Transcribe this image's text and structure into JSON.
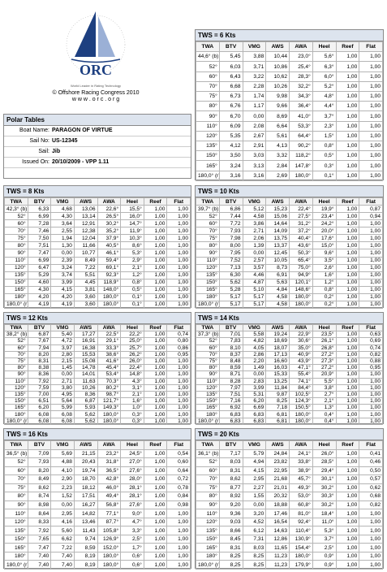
{
  "header": {
    "logo": "ORC",
    "tagline": "World Leader in Rating Technology",
    "copyright": "© Offshore Racing Congress 2010",
    "website": "w w w . o r c . o r g"
  },
  "boat": {
    "title": "Polar Tables",
    "fields": [
      {
        "label": "Boat Name:",
        "value": "PARAGON OF VIRTUE"
      },
      {
        "label": "Sail No:",
        "value": "US-12345"
      },
      {
        "label": "Sail:",
        "value": "Jib"
      },
      {
        "label": "Issued On:",
        "value": "20/10/2009 - VPP 1.11"
      }
    ]
  },
  "columns": [
    "TWA",
    "BTV",
    "VMG",
    "AWS",
    "AWA",
    "Heel",
    "Reef",
    "Flat"
  ],
  "tables": [
    {
      "title": "TWS = 6 Kts",
      "rows": [
        [
          "44,6° (b)",
          "5,45",
          "3,88",
          "10,44",
          "23,0°",
          "5,6°",
          "1,00",
          "1,00"
        ],
        [
          "52°",
          "6,03",
          "3,71",
          "10,86",
          "25,4°",
          "6,3°",
          "1,00",
          "1,00"
        ],
        [
          "60°",
          "6,43",
          "3,22",
          "10,62",
          "28,3°",
          "6,0°",
          "1,00",
          "1,00"
        ],
        [
          "70°",
          "6,68",
          "2,28",
          "10,26",
          "32,2°",
          "5,2°",
          "1,00",
          "1,00"
        ],
        [
          "75°",
          "6,73",
          "1,74",
          "9,98",
          "34,3°",
          "4,8°",
          "1,00",
          "1,00"
        ],
        [
          "80°",
          "6,76",
          "1,17",
          "9,66",
          "36,4°",
          "4,4°",
          "1,00",
          "1,00"
        ],
        [
          "90°",
          "6,70",
          "0,00",
          "8,69",
          "41,0°",
          "3,7°",
          "1,00",
          "1,00"
        ],
        [
          "110°",
          "6,09",
          "2,08",
          "6,64",
          "53,3°",
          "2,3°",
          "1,00",
          "1,00"
        ],
        [
          "120°",
          "5,35",
          "2,67",
          "5,61",
          "64,4°",
          "1,5°",
          "1,00",
          "1,00"
        ],
        [
          "135°",
          "4,12",
          "2,91",
          "4,13",
          "90,2°",
          "0,8°",
          "1,00",
          "1,00"
        ],
        [
          "150°",
          "3,50",
          "3,03",
          "3,32",
          "118,2°",
          "0,5°",
          "1,00",
          "1,00"
        ],
        [
          "165°",
          "3,24",
          "3,13",
          "2,84",
          "147,8°",
          "0,3°",
          "1,00",
          "1,00"
        ],
        [
          "180,0° (r)",
          "3,16",
          "3,16",
          "2,69",
          "180,0°",
          "0,1°",
          "1,00",
          "1,00"
        ]
      ]
    },
    {
      "title": "TWS = 8 Kts",
      "rows": [
        [
          "42,3° (b)",
          "6,33",
          "4,68",
          "13,06",
          "22,6°",
          "15,5°",
          "1,00",
          "1,00"
        ],
        [
          "52°",
          "6,99",
          "4,30",
          "13,14",
          "26,5°",
          "16,0°",
          "1,00",
          "1,00"
        ],
        [
          "60°",
          "7,28",
          "3,64",
          "12,91",
          "30,2°",
          "14,7°",
          "1,00",
          "1,00"
        ],
        [
          "70°",
          "7,46",
          "2,55",
          "12,38",
          "35,2°",
          "11,9°",
          "1,00",
          "1,00"
        ],
        [
          "75°",
          "7,50",
          "1,94",
          "12,04",
          "37,9°",
          "10,3°",
          "1,00",
          "1,00"
        ],
        [
          "80°",
          "7,51",
          "1,30",
          "11,66",
          "40,5°",
          "8,6°",
          "1,00",
          "1,00"
        ],
        [
          "90°",
          "7,47",
          "0,00",
          "10,77",
          "46,1°",
          "5,3°",
          "1,00",
          "1,00"
        ],
        [
          "110°",
          "6,99",
          "2,39",
          "8,49",
          "59,4°",
          "2,9°",
          "1,00",
          "1,00"
        ],
        [
          "120°",
          "6,47",
          "3,24",
          "7,22",
          "69,1°",
          "2,1°",
          "1,00",
          "1,00"
        ],
        [
          "135°",
          "5,29",
          "3,74",
          "5,51",
          "92,3°",
          "1,2°",
          "1,00",
          "1,00"
        ],
        [
          "150°",
          "4,60",
          "3,99",
          "4,45",
          "118,9°",
          "0,8°",
          "1,00",
          "1,00"
        ],
        [
          "165°",
          "4,30",
          "4,15",
          "3,81",
          "148,0°",
          "0,5°",
          "1,00",
          "1,00"
        ],
        [
          "180°",
          "4,20",
          "4,20",
          "3,60",
          "180,0°",
          "0,1°",
          "1,00",
          "1,00"
        ],
        [
          "180,0° (r)",
          "4,19",
          "4,19",
          "3,60",
          "180,0°",
          "0,1°",
          "1,00",
          "1,00"
        ]
      ]
    },
    {
      "title": "TWS = 10 Kts",
      "rows": [
        [
          "39,7° (b)",
          "6,86",
          "5,12",
          "15,23",
          "22,4°",
          "19,9°",
          "1,00",
          "0,87"
        ],
        [
          "52°",
          "7,44",
          "4,58",
          "15,06",
          "27,5°",
          "23,4°",
          "1,00",
          "0,94"
        ],
        [
          "60°",
          "7,72",
          "3,86",
          "14,64",
          "31,2°",
          "24,2°",
          "1,00",
          "1,00"
        ],
        [
          "70°",
          "7,93",
          "2,71",
          "14,09",
          "37,2°",
          "20,0°",
          "1,00",
          "1,00"
        ],
        [
          "75°",
          "7,98",
          "2,06",
          "13,75",
          "40,4°",
          "17,6°",
          "1,00",
          "1,00"
        ],
        [
          "80°",
          "8,00",
          "1,39",
          "13,37",
          "43,6°",
          "15,0°",
          "1,00",
          "1,00"
        ],
        [
          "90°",
          "7,95",
          "0,00",
          "12,45",
          "50,3°",
          "9,6°",
          "1,00",
          "1,00"
        ],
        [
          "110°",
          "7,52",
          "2,57",
          "10,05",
          "65,4°",
          "3,5°",
          "1,00",
          "1,00"
        ],
        [
          "120°",
          "7,13",
          "3,57",
          "8,73",
          "75,0°",
          "2,6°",
          "1,00",
          "1,00"
        ],
        [
          "135°",
          "6,30",
          "4,46",
          "6,91",
          "94,9°",
          "1,6°",
          "1,00",
          "1,00"
        ],
        [
          "150°",
          "5,62",
          "4,87",
          "5,63",
          "120,1°",
          "1,2°",
          "1,00",
          "1,00"
        ],
        [
          "165°",
          "5,28",
          "5,10",
          "4,84",
          "148,6°",
          "0,8°",
          "1,00",
          "1,00"
        ],
        [
          "180°",
          "5,17",
          "5,17",
          "4,58",
          "180,0°",
          "0,2°",
          "1,00",
          "1,00"
        ],
        [
          "180,0° (r)",
          "5,17",
          "5,17",
          "4,58",
          "180,0°",
          "0,2°",
          "1,00",
          "1,00"
        ]
      ]
    },
    {
      "title": "TWS = 12 Kts",
      "rows": [
        [
          "38,2° (b)",
          "6,87",
          "5,40",
          "17,27",
          "22,5°",
          "22,2°",
          "1,00",
          "0,74"
        ],
        [
          "52°",
          "7,67",
          "4,72",
          "16,91",
          "29,1°",
          "25,0°",
          "1,00",
          "0,80"
        ],
        [
          "60°",
          "7,94",
          "3,97",
          "16,38",
          "33,3°",
          "25,7°",
          "1,00",
          "0,86"
        ],
        [
          "70°",
          "8,20",
          "2,80",
          "15,53",
          "38,6°",
          "26,2°",
          "1,00",
          "0,95"
        ],
        [
          "75°",
          "8,31",
          "2,15",
          "15,08",
          "41,6°",
          "26,0°",
          "1,00",
          "1,00"
        ],
        [
          "80°",
          "8,38",
          "1,45",
          "14,78",
          "45,4°",
          "22,4°",
          "1,00",
          "1,00"
        ],
        [
          "90°",
          "8,36",
          "0,00",
          "14,01",
          "53,4°",
          "14,8°",
          "1,00",
          "1,00"
        ],
        [
          "110°",
          "7,92",
          "2,71",
          "11,63",
          "70,3°",
          "4,3°",
          "1,00",
          "1,00"
        ],
        [
          "120°",
          "7,59",
          "3,80",
          "10,26",
          "80,2°",
          "3,1°",
          "1,00",
          "1,00"
        ],
        [
          "135°",
          "7,00",
          "4,95",
          "8,36",
          "98,7°",
          "2,1°",
          "1,00",
          "1,00"
        ],
        [
          "150°",
          "6,51",
          "5,64",
          "6,87",
          "121,7°",
          "1,6°",
          "1,00",
          "1,00"
        ],
        [
          "165°",
          "6,20",
          "5,99",
          "5,93",
          "149,3°",
          "1,0°",
          "1,00",
          "1,00"
        ],
        [
          "180°",
          "6,08",
          "6,08",
          "5,62",
          "180,0°",
          "0,3°",
          "1,00",
          "1,00"
        ],
        [
          "180,0° (r)",
          "6,08",
          "6,08",
          "5,62",
          "180,0°",
          "0,3°",
          "1,00",
          "1,00"
        ]
      ]
    },
    {
      "title": "TWS = 14 Kts",
      "rows": [
        [
          "37,3° (b)",
          "7,01",
          "5,58",
          "19,24",
          "22,9°",
          "23,5°",
          "1,00",
          "0,63"
        ],
        [
          "52°",
          "7,83",
          "4,82",
          "18,69",
          "30,6°",
          "26,1°",
          "1,00",
          "0,69"
        ],
        [
          "60°",
          "8,10",
          "4,05",
          "18,07",
          "35,0°",
          "26,8°",
          "1,00",
          "0,74"
        ],
        [
          "70°",
          "8,37",
          "2,86",
          "17,13",
          "40,9°",
          "27,2°",
          "1,00",
          "0,82"
        ],
        [
          "75°",
          "8,48",
          "2,20",
          "16,60",
          "43,9°",
          "27,3°",
          "1,00",
          "0,88"
        ],
        [
          "80°",
          "8,59",
          "1,49",
          "16,03",
          "47,1°",
          "27,2°",
          "1,00",
          "0,95"
        ],
        [
          "90°",
          "8,71",
          "0,00",
          "15,33",
          "55,4°",
          "20,9°",
          "1,00",
          "1,00"
        ],
        [
          "110°",
          "8,28",
          "2,83",
          "13,25",
          "74,1°",
          "5,5°",
          "1,00",
          "1,00"
        ],
        [
          "120°",
          "7,97",
          "3,99",
          "11,84",
          "84,4°",
          "3,8°",
          "1,00",
          "1,00"
        ],
        [
          "135°",
          "7,51",
          "5,31",
          "9,87",
          "102,5°",
          "2,7°",
          "1,00",
          "1,00"
        ],
        [
          "150°",
          "7,16",
          "6,20",
          "8,25",
          "124,3°",
          "2,1°",
          "1,00",
          "1,00"
        ],
        [
          "165°",
          "6,92",
          "6,69",
          "7,18",
          "150,5°",
          "1,3°",
          "1,00",
          "1,00"
        ],
        [
          "180°",
          "6,83",
          "6,83",
          "6,81",
          "180,0°",
          "0,4°",
          "1,00",
          "1,00"
        ],
        [
          "180,0° (r)",
          "6,83",
          "6,83",
          "6,81",
          "180,0°",
          "0,4°",
          "1,00",
          "1,00"
        ]
      ]
    },
    {
      "title": "TWS = 16 Kts",
      "rows": [
        [
          "36,5° (b)",
          "7,09",
          "5,69",
          "21,15",
          "23,2°",
          "24,5°",
          "1,00",
          "0,54"
        ],
        [
          "52°",
          "7,93",
          "4,88",
          "20,43",
          "31,8°",
          "27,0°",
          "1,00",
          "0,60"
        ],
        [
          "60°",
          "8,20",
          "4,10",
          "19,74",
          "36,5°",
          "27,6°",
          "1,00",
          "0,64"
        ],
        [
          "70°",
          "8,49",
          "2,90",
          "18,70",
          "42,8°",
          "28,0°",
          "1,00",
          "0,72"
        ],
        [
          "75°",
          "8,62",
          "2,23",
          "18,12",
          "46,0°",
          "28,1°",
          "1,00",
          "0,78"
        ],
        [
          "80°",
          "8,74",
          "1,52",
          "17,51",
          "49,4°",
          "28,1°",
          "1,00",
          "0,84"
        ],
        [
          "90°",
          "8,98",
          "0,00",
          "16,27",
          "56,8°",
          "27,6°",
          "1,00",
          "0,98"
        ],
        [
          "110°",
          "8,64",
          "2,95",
          "14,82",
          "77,1°",
          "9,0°",
          "1,00",
          "1,00"
        ],
        [
          "120°",
          "8,33",
          "4,16",
          "13,46",
          "87,7°",
          "4,7°",
          "1,00",
          "1,00"
        ],
        [
          "135°",
          "7,92",
          "5,60",
          "11,43",
          "105,8°",
          "3,3°",
          "1,00",
          "1,00"
        ],
        [
          "150°",
          "7,65",
          "6,62",
          "9,74",
          "126,9°",
          "2,5°",
          "1,00",
          "1,00"
        ],
        [
          "165°",
          "7,47",
          "7,22",
          "8,59",
          "152,0°",
          "1,7°",
          "1,00",
          "1,00"
        ],
        [
          "180°",
          "7,40",
          "7,40",
          "8,19",
          "180,0°",
          "0,6°",
          "1,00",
          "1,00"
        ],
        [
          "180,0° (r)",
          "7,40",
          "7,40",
          "8,19",
          "180,0°",
          "0,6°",
          "1,00",
          "1,00"
        ]
      ]
    },
    {
      "title": "TWS = 20 Kts",
      "rows": [
        [
          "36,1° (b)",
          "7,17",
          "5,79",
          "24,84",
          "24,1°",
          "26,0°",
          "1,00",
          "0,41"
        ],
        [
          "52°",
          "8,03",
          "4,94",
          "23,82",
          "33,8°",
          "28,5°",
          "1,00",
          "0,46"
        ],
        [
          "60°",
          "8,31",
          "4,15",
          "22,95",
          "38,9°",
          "29,4°",
          "1,00",
          "0,50"
        ],
        [
          "70°",
          "8,62",
          "2,95",
          "21,68",
          "45,7°",
          "30,1°",
          "1,00",
          "0,57"
        ],
        [
          "75°",
          "8,77",
          "2,27",
          "21,01",
          "49,3°",
          "30,2°",
          "1,00",
          "0,62"
        ],
        [
          "80°",
          "8,92",
          "1,55",
          "20,32",
          "53,0°",
          "30,3°",
          "1,00",
          "0,68"
        ],
        [
          "90°",
          "9,20",
          "0,00",
          "18,88",
          "60,8°",
          "30,2°",
          "1,00",
          "0,82"
        ],
        [
          "110°",
          "9,36",
          "3,20",
          "17,46",
          "81,0°",
          "18,4°",
          "1,00",
          "1,00"
        ],
        [
          "120°",
          "9,03",
          "4,52",
          "16,54",
          "92,4°",
          "11,0°",
          "1,00",
          "1,00"
        ],
        [
          "135°",
          "8,66",
          "6,12",
          "14,63",
          "110,4°",
          "5,3°",
          "1,00",
          "1,00"
        ],
        [
          "150°",
          "8,45",
          "7,31",
          "12,86",
          "130,9°",
          "3,7°",
          "1,00",
          "1,00"
        ],
        [
          "165°",
          "8,31",
          "8,03",
          "11,65",
          "154,4°",
          "2,5°",
          "1,00",
          "1,00"
        ],
        [
          "180°",
          "8,25",
          "8,25",
          "11,23",
          "180,0°",
          "0,9°",
          "1,00",
          "1,00"
        ],
        [
          "180,0° (r)",
          "8,25",
          "8,25",
          "11,23",
          "179,9°",
          "0,9°",
          "1,00",
          "1,00"
        ]
      ]
    }
  ]
}
